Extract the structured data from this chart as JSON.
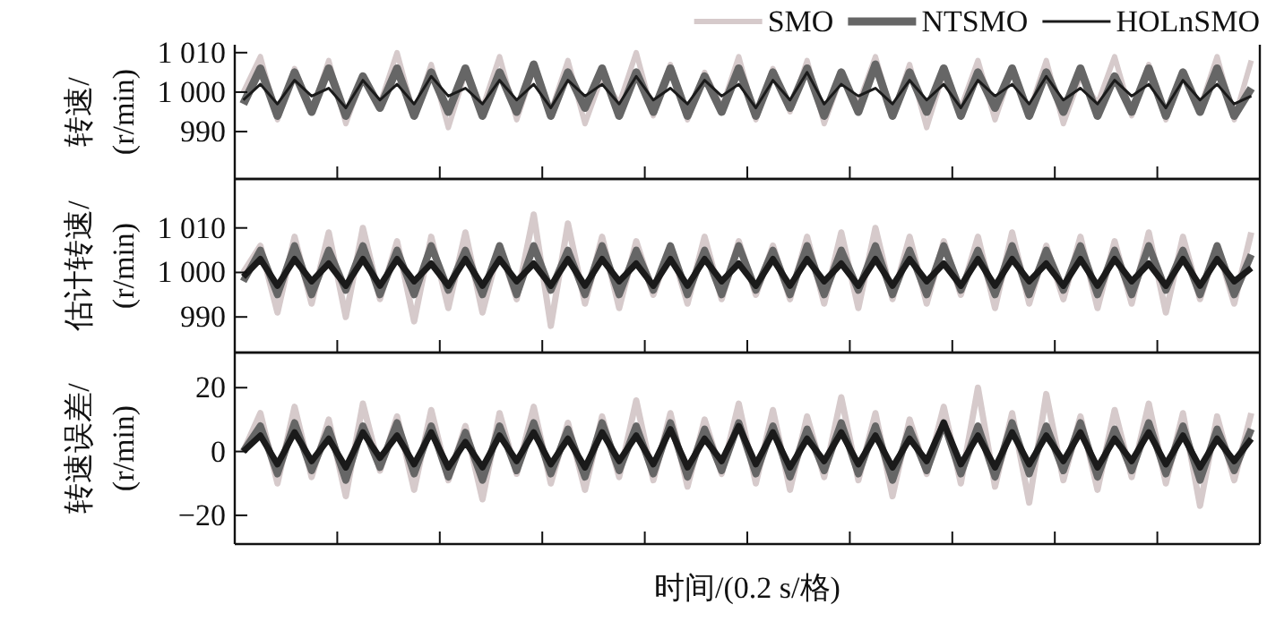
{
  "chart_data": [
    {
      "type": "line",
      "ylabel": "转速/\n(r/min)",
      "legend": "top right",
      "tick_labels": "y",
      "ylim": [
        978,
        1012
      ],
      "yticks": [
        {
          "value": 990,
          "label": "990"
        },
        {
          "value": 1000,
          "label": "1 000"
        },
        {
          "value": 1010,
          "label": "1 010"
        }
      ],
      "categories": [
        null,
        null,
        null,
        null,
        null,
        null,
        null,
        null,
        null,
        null,
        null,
        null,
        null,
        null,
        null,
        null,
        null,
        null,
        null,
        null,
        null,
        null,
        null,
        null,
        null,
        null,
        null,
        null,
        null,
        null,
        null,
        null,
        null,
        null,
        null,
        null,
        null,
        null,
        null,
        null,
        null,
        null,
        null,
        null,
        null,
        null,
        null,
        null,
        null,
        null,
        null,
        null,
        null,
        null,
        null,
        null,
        null,
        null,
        null,
        null
      ],
      "series": [
        {
          "name": "SMO",
          "color": "#d6cacb",
          "values": [
            1000,
            1009,
            993,
            1006,
            995,
            1008,
            992,
            1004,
            997,
            1010,
            994,
            1007,
            991,
            1005,
            996,
            1009,
            993,
            1006,
            995,
            1008,
            992,
            1004,
            997,
            1010,
            994,
            1007,
            993,
            1005,
            996,
            1009,
            993,
            1006,
            995,
            1008,
            992,
            1004,
            997,
            1009,
            994,
            1007,
            991,
            1005,
            996,
            1008,
            993,
            1006,
            995,
            1008,
            992,
            1004,
            997,
            1009,
            994,
            1007,
            993,
            1005,
            996,
            1009,
            993,
            1008
          ]
        },
        {
          "name": "NTSMO",
          "color": "#666666",
          "values": [
            997,
            1006,
            994,
            1005,
            995,
            1006,
            994,
            1004,
            996,
            1006,
            994,
            1005,
            995,
            1006,
            994,
            1005,
            995,
            1007,
            994,
            1005,
            996,
            1006,
            994,
            1005,
            995,
            1006,
            994,
            1004,
            995,
            1006,
            994,
            1005,
            996,
            1006,
            994,
            1005,
            995,
            1007,
            994,
            1005,
            995,
            1006,
            994,
            1005,
            996,
            1006,
            994,
            1005,
            995,
            1006,
            994,
            1004,
            995,
            1006,
            994,
            1005,
            995,
            1006,
            994,
            1001
          ]
        },
        {
          "name": "HOLnSMO",
          "color": "#1a1a1a",
          "values": [
            998,
            1002,
            997,
            1003,
            999,
            1001,
            996,
            1003,
            998,
            1002,
            997,
            1004,
            999,
            1001,
            997,
            1003,
            998,
            1002,
            996,
            1003,
            999,
            1002,
            997,
            1004,
            998,
            1001,
            997,
            1003,
            999,
            1002,
            996,
            1003,
            998,
            1005,
            997,
            1002,
            999,
            1001,
            997,
            1003,
            998,
            1002,
            996,
            1003,
            999,
            1002,
            997,
            1004,
            998,
            1001,
            997,
            1003,
            999,
            1002,
            996,
            1003,
            998,
            1002,
            997,
            999
          ]
        }
      ]
    },
    {
      "type": "line",
      "ylabel": "估计转速/\n(r/min)",
      "tick_labels": "y",
      "ylim": [
        982,
        1021
      ],
      "yticks": [
        {
          "value": 990,
          "label": "990"
        },
        {
          "value": 1000,
          "label": "1 000"
        },
        {
          "value": 1010,
          "label": "1 010"
        }
      ],
      "categories": [
        null,
        null,
        null,
        null,
        null,
        null,
        null,
        null,
        null,
        null,
        null,
        null,
        null,
        null,
        null,
        null,
        null,
        null,
        null,
        null,
        null,
        null,
        null,
        null,
        null,
        null,
        null,
        null,
        null,
        null,
        null,
        null,
        null,
        null,
        null,
        null,
        null,
        null,
        null,
        null,
        null,
        null,
        null,
        null,
        null,
        null,
        null,
        null,
        null,
        null,
        null,
        null,
        null,
        null,
        null,
        null,
        null,
        null,
        null,
        null
      ],
      "series": [
        {
          "color": "#d6cacb",
          "values": [
            1000,
            1006,
            991,
            1008,
            993,
            1009,
            990,
            1010,
            994,
            1007,
            989,
            1008,
            992,
            1009,
            991,
            1006,
            994,
            1013,
            988,
            1011,
            993,
            1008,
            992,
            1007,
            995,
            1006,
            993,
            1008,
            994,
            1007,
            995,
            1006,
            994,
            1008,
            993,
            1009,
            992,
            1010,
            994,
            1008,
            993,
            1007,
            995,
            1008,
            992,
            1009,
            993,
            1006,
            994,
            1008,
            992,
            1007,
            993,
            1009,
            991,
            1008,
            994,
            1006,
            993,
            1009
          ]
        },
        {
          "color": "#666666",
          "values": [
            998,
            1005,
            995,
            1006,
            995,
            1005,
            996,
            1006,
            995,
            1005,
            995,
            1006,
            996,
            1005,
            995,
            1006,
            995,
            1006,
            996,
            1005,
            995,
            1006,
            995,
            1005,
            996,
            1006,
            995,
            1005,
            995,
            1006,
            996,
            1005,
            995,
            1006,
            995,
            1005,
            996,
            1006,
            995,
            1005,
            995,
            1006,
            996,
            1005,
            995,
            1006,
            995,
            1005,
            996,
            1006,
            995,
            1005,
            995,
            1006,
            996,
            1005,
            995,
            1006,
            995,
            1004
          ]
        },
        {
          "color": "#1a1a1a",
          "values": [
            999,
            1003,
            997,
            1003,
            998,
            1002,
            997,
            1003,
            997,
            1003,
            998,
            1002,
            997,
            1003,
            997,
            1003,
            998,
            1002,
            997,
            1003,
            997,
            1003,
            998,
            1002,
            997,
            1003,
            997,
            1003,
            998,
            1002,
            997,
            1003,
            997,
            1003,
            998,
            1002,
            997,
            1003,
            997,
            1003,
            998,
            1002,
            997,
            1003,
            997,
            1003,
            998,
            1002,
            997,
            1003,
            997,
            1003,
            998,
            1002,
            997,
            1003,
            997,
            1003,
            998,
            1001
          ]
        }
      ]
    },
    {
      "type": "line",
      "ylabel": "转速误差/\n(r/min)",
      "xlabel": "时间/(0.2 s/格)",
      "tick_labels": "y",
      "ylim": [
        -29,
        31
      ],
      "yticks": [
        {
          "value": -20,
          "label": "−20"
        },
        0,
        20
      ],
      "categories": [
        null,
        null,
        null,
        null,
        null,
        null,
        null,
        null,
        null,
        null,
        null,
        null,
        null,
        null,
        null,
        null,
        null,
        null,
        null,
        null,
        null,
        null,
        null,
        null,
        null,
        null,
        null,
        null,
        null,
        null,
        null,
        null,
        null,
        null,
        null,
        null,
        null,
        null,
        null,
        null,
        null,
        null,
        null,
        null,
        null,
        null,
        null,
        null,
        null,
        null,
        null,
        null,
        null,
        null,
        null,
        null,
        null,
        null,
        null,
        null
      ],
      "series": [
        {
          "color": "#d6cacb",
          "values": [
            0,
            12,
            -10,
            14,
            -8,
            10,
            -14,
            15,
            -6,
            11,
            -12,
            13,
            -9,
            8,
            -15,
            12,
            -7,
            14,
            -10,
            9,
            -12,
            11,
            -8,
            16,
            -9,
            12,
            -11,
            10,
            -7,
            15,
            -10,
            13,
            -12,
            11,
            -8,
            17,
            -9,
            12,
            -14,
            10,
            -7,
            14,
            -10,
            20,
            -11,
            12,
            -16,
            18,
            -9,
            11,
            -12,
            13,
            -8,
            15,
            -10,
            12,
            -17,
            11,
            -9,
            12
          ]
        },
        {
          "color": "#666666",
          "values": [
            0,
            8,
            -7,
            9,
            -6,
            7,
            -9,
            8,
            -5,
            9,
            -7,
            8,
            -8,
            6,
            -9,
            8,
            -6,
            9,
            -7,
            7,
            -8,
            9,
            -6,
            8,
            -7,
            9,
            -8,
            7,
            -6,
            9,
            -7,
            8,
            -8,
            7,
            -6,
            9,
            -7,
            8,
            -9,
            7,
            -6,
            9,
            -7,
            8,
            -8,
            9,
            -7,
            8,
            -6,
            9,
            -8,
            7,
            -6,
            9,
            -7,
            8,
            -9,
            7,
            -6,
            7
          ]
        },
        {
          "color": "#1a1a1a",
          "values": [
            0,
            5,
            -4,
            6,
            -3,
            4,
            -5,
            6,
            -2,
            5,
            -4,
            6,
            -5,
            3,
            -5,
            5,
            -3,
            6,
            -4,
            4,
            -5,
            6,
            -3,
            5,
            -4,
            7,
            -5,
            4,
            -3,
            8,
            -4,
            6,
            -5,
            4,
            -3,
            6,
            -4,
            5,
            -5,
            4,
            -3,
            9,
            -4,
            5,
            -5,
            6,
            -4,
            5,
            -3,
            6,
            -5,
            4,
            -3,
            6,
            -4,
            5,
            -5,
            4,
            -3,
            4
          ]
        }
      ]
    }
  ]
}
